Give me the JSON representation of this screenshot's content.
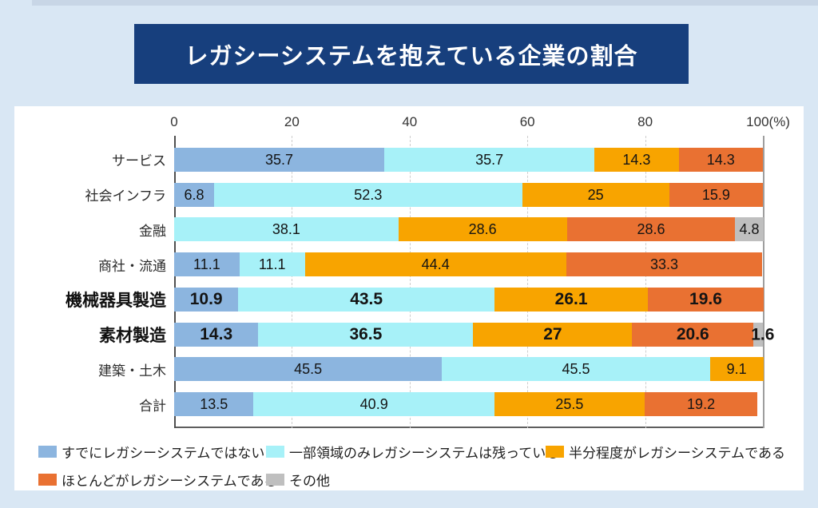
{
  "chart_data": {
    "type": "bar",
    "orientation": "horizontal",
    "stacked": true,
    "title": "レガシーシステムを抱えている企業の割合",
    "x_axis": {
      "min": 0,
      "max": 100,
      "unit": "%",
      "ticks": [
        {
          "value": 0,
          "label": "0"
        },
        {
          "value": 20,
          "label": "20"
        },
        {
          "value": 40,
          "label": "40"
        },
        {
          "value": 60,
          "label": "60"
        },
        {
          "value": 80,
          "label": "80"
        },
        {
          "value": 100,
          "label": "100(%)"
        }
      ],
      "grid": true
    },
    "legend_position": "bottom",
    "legend": [
      {
        "key": "already_not_legacy",
        "label": "すでにレガシーシステムではない",
        "color": "#8CB5DF"
      },
      {
        "key": "partial_legacy",
        "label": "一部領域のみレガシーシステムは残っている",
        "color": "#A7F1F8"
      },
      {
        "key": "half_legacy",
        "label": "半分程度がレガシーシステムである",
        "color": "#F8A400"
      },
      {
        "key": "mostly_legacy",
        "label": "ほとんどがレガシーシステムである",
        "color": "#E97132"
      },
      {
        "key": "other",
        "label": "その他",
        "color": "#BFBFBF"
      }
    ],
    "rows": [
      {
        "category": "サービス",
        "emphasis": false,
        "segments": [
          {
            "series": "already_not_legacy",
            "value": 35.7,
            "label": "35.7"
          },
          {
            "series": "partial_legacy",
            "value": 35.7,
            "label": "35.7"
          },
          {
            "series": "half_legacy",
            "value": 14.3,
            "label": "14.3"
          },
          {
            "series": "mostly_legacy",
            "value": 14.3,
            "label": "14.3"
          }
        ]
      },
      {
        "category": "社会インフラ",
        "emphasis": false,
        "segments": [
          {
            "series": "already_not_legacy",
            "value": 6.8,
            "label": "6.8"
          },
          {
            "series": "partial_legacy",
            "value": 52.3,
            "label": "52.3"
          },
          {
            "series": "half_legacy",
            "value": 25,
            "label": "25"
          },
          {
            "series": "mostly_legacy",
            "value": 15.9,
            "label": "15.9"
          }
        ]
      },
      {
        "category": "金融",
        "emphasis": false,
        "segments": [
          {
            "series": "partial_legacy",
            "value": 38.1,
            "label": "38.1"
          },
          {
            "series": "half_legacy",
            "value": 28.6,
            "label": "28.6"
          },
          {
            "series": "mostly_legacy",
            "value": 28.6,
            "label": "28.6"
          },
          {
            "series": "other",
            "value": 4.8,
            "label": "4.8"
          }
        ]
      },
      {
        "category": "商社・流通",
        "emphasis": false,
        "segments": [
          {
            "series": "already_not_legacy",
            "value": 11.1,
            "label": "11.1"
          },
          {
            "series": "partial_legacy",
            "value": 11.1,
            "label": "11.1"
          },
          {
            "series": "half_legacy",
            "value": 44.4,
            "label": "44.4"
          },
          {
            "series": "mostly_legacy",
            "value": 33.3,
            "label": "33.3"
          }
        ]
      },
      {
        "category": "機械器具製造",
        "emphasis": true,
        "segments": [
          {
            "series": "already_not_legacy",
            "value": 10.9,
            "label": "10.9"
          },
          {
            "series": "partial_legacy",
            "value": 43.5,
            "label": "43.5"
          },
          {
            "series": "half_legacy",
            "value": 26.1,
            "label": "26.1"
          },
          {
            "series": "mostly_legacy",
            "value": 19.6,
            "label": "19.6"
          }
        ]
      },
      {
        "category": "素材製造",
        "emphasis": true,
        "segments": [
          {
            "series": "already_not_legacy",
            "value": 14.3,
            "label": "14.3"
          },
          {
            "series": "partial_legacy",
            "value": 36.5,
            "label": "36.5"
          },
          {
            "series": "half_legacy",
            "value": 27,
            "label": "27"
          },
          {
            "series": "mostly_legacy",
            "value": 20.6,
            "label": "20.6"
          },
          {
            "series": "other",
            "value": 1.6,
            "label": "1.6",
            "label_outside": true
          }
        ]
      },
      {
        "category": "建築・土木",
        "emphasis": false,
        "segments": [
          {
            "series": "already_not_legacy",
            "value": 45.5,
            "label": "45.5"
          },
          {
            "series": "partial_legacy",
            "value": 45.5,
            "label": "45.5"
          },
          {
            "series": "half_legacy",
            "value": 9.1,
            "label": "9.1"
          }
        ]
      },
      {
        "category": "合計",
        "emphasis": false,
        "segments": [
          {
            "series": "already_not_legacy",
            "value": 13.5,
            "label": "13.5"
          },
          {
            "series": "partial_legacy",
            "value": 40.9,
            "label": "40.9"
          },
          {
            "series": "half_legacy",
            "value": 25.5,
            "label": "25.5"
          },
          {
            "series": "mostly_legacy",
            "value": 19.2,
            "label": "19.2"
          }
        ]
      }
    ]
  },
  "colors": {
    "background": "#D9E7F4",
    "top_strip": "#C8D6E6",
    "title_bg": "#173F7D",
    "title_text": "#FFFFFF",
    "panel_bg": "#FFFFFF",
    "grid_dashed": "#CDCDCD",
    "axis_zero_line": "#4F4F4F",
    "axis_hundred_line": "#9E9E9E",
    "axis_baseline": "#5E5E5E"
  }
}
